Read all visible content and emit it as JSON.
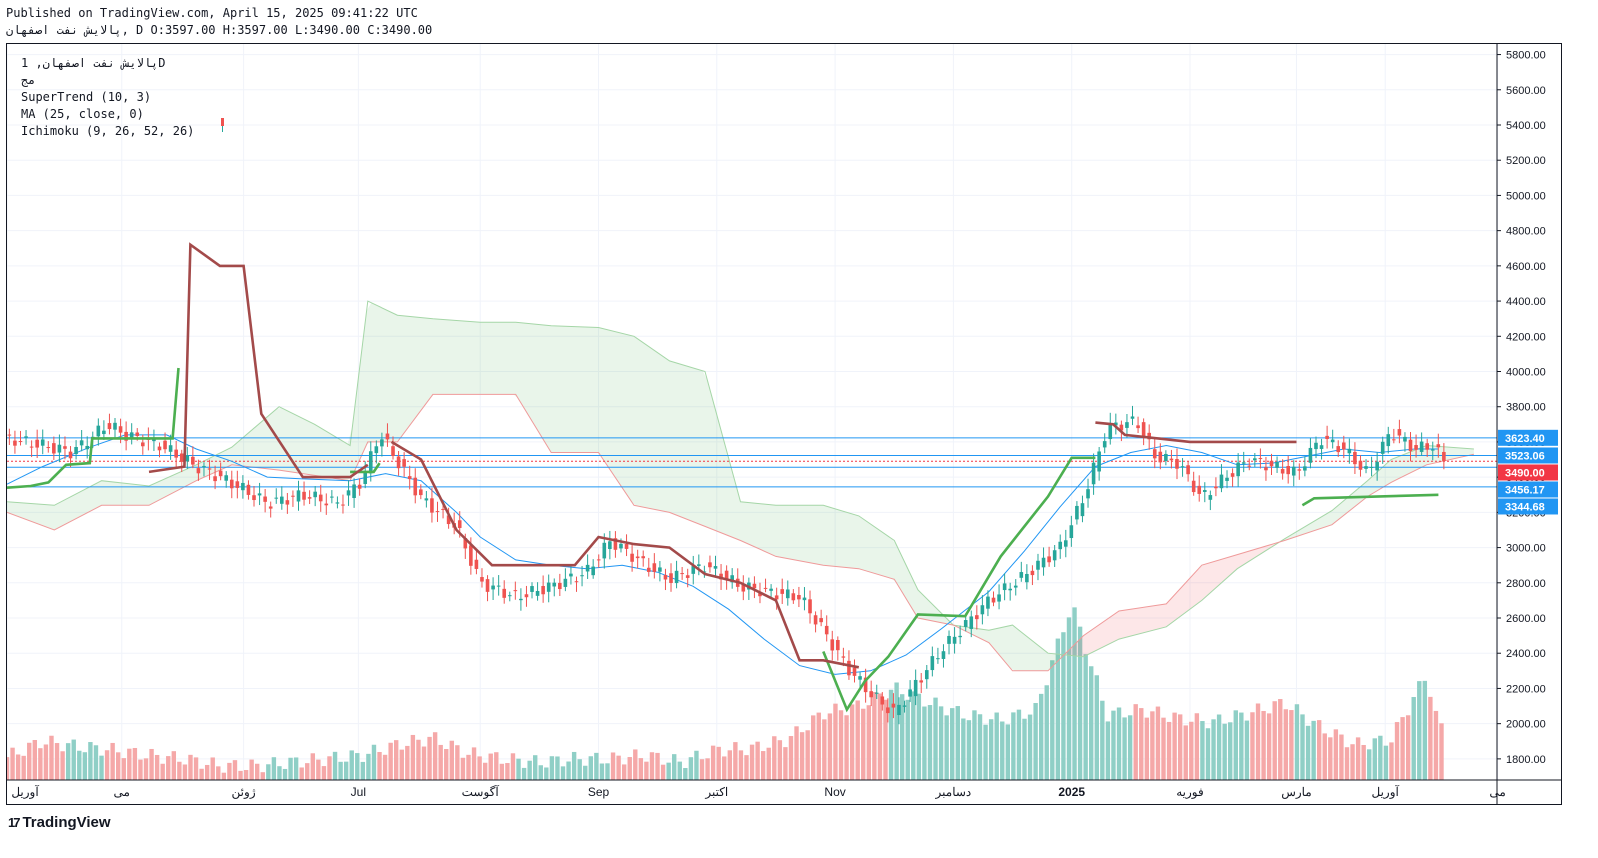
{
  "header": {
    "published": "Published on TradingView.com, April 15, 2025 09:41:22 UTC",
    "ohlc": "پالایش نفت اصفهان, D O:3597.00 H:3597.00 L:3490.00 C:3490.00"
  },
  "legend": {
    "symbol": "پالایش نفت اصفهان, 1D",
    "sub": "مج",
    "supertrend": "SuperTrend (10, 3)",
    "ma": "MA (25, close, 0)",
    "ichimoku": "Ichimoku (9, 26, 52, 26)"
  },
  "brand": {
    "logo": "17",
    "name": "TradingView"
  },
  "chart_data": {
    "type": "candlestick",
    "y_ticks": [
      "5800.00",
      "5600.00",
      "5400.00",
      "5200.00",
      "5000.00",
      "4800.00",
      "4600.00",
      "4400.00",
      "4200.00",
      "4000.00",
      "3800.00",
      "3600.00",
      "3400.00",
      "3200.00",
      "3000.00",
      "2800.00",
      "2600.00",
      "2400.00",
      "2200.00",
      "2000.00",
      "1800.00"
    ],
    "ylim": [
      1680,
      5860
    ],
    "x_labels": [
      {
        "label": "آوریل",
        "d": 0
      },
      {
        "label": "می",
        "d": 0.97
      },
      {
        "label": "ژوئن",
        "d": 2.0
      },
      {
        "label": "Jul",
        "d": 2.97
      },
      {
        "label": "آگوست",
        "d": 4.0
      },
      {
        "label": "Sep",
        "d": 5.0
      },
      {
        "label": "اکتبر",
        "d": 6.0
      },
      {
        "label": "Nov",
        "d": 7.0
      },
      {
        "label": "دسامبر",
        "d": 8.0
      },
      {
        "label": "2025",
        "d": 9.0
      },
      {
        "label": "فوریه",
        "d": 10.0
      },
      {
        "label": "مارس",
        "d": 10.9
      },
      {
        "label": "آوریل",
        "d": 11.65
      },
      {
        "label": "می",
        "d": 12.6
      }
    ],
    "price_labels": [
      {
        "value": "3623.40",
        "price": 3623.4,
        "color": "#2196f3"
      },
      {
        "value": "3523.06",
        "price": 3523.06,
        "color": "#2196f3"
      },
      {
        "value": "3490.00",
        "price": 3490,
        "color": "#f23645"
      },
      {
        "value": "3456.17",
        "price": 3456.17,
        "color": "#2196f3"
      },
      {
        "value": "3344.68",
        "price": 3344.68,
        "color": "#2196f3"
      }
    ],
    "close_path": [
      [
        0,
        3620
      ],
      [
        0.3,
        3580
      ],
      [
        0.55,
        3540
      ],
      [
        0.85,
        3700
      ],
      [
        1.0,
        3640
      ],
      [
        1.3,
        3580
      ],
      [
        1.6,
        3460
      ],
      [
        1.8,
        3400
      ],
      [
        2.0,
        3330
      ],
      [
        2.2,
        3250
      ],
      [
        2.5,
        3300
      ],
      [
        2.8,
        3250
      ],
      [
        3.0,
        3380
      ],
      [
        3.15,
        3650
      ],
      [
        3.3,
        3490
      ],
      [
        3.5,
        3280
      ],
      [
        3.8,
        3120
      ],
      [
        4.0,
        2800
      ],
      [
        4.3,
        2720
      ],
      [
        4.6,
        2780
      ],
      [
        4.9,
        2860
      ],
      [
        5.1,
        3040
      ],
      [
        5.4,
        2900
      ],
      [
        5.6,
        2820
      ],
      [
        5.9,
        2900
      ],
      [
        6.2,
        2780
      ],
      [
        6.5,
        2740
      ],
      [
        6.7,
        2720
      ],
      [
        6.9,
        2530
      ],
      [
        7.1,
        2320
      ],
      [
        7.3,
        2170
      ],
      [
        7.5,
        2060
      ],
      [
        7.7,
        2240
      ],
      [
        7.9,
        2420
      ],
      [
        8.1,
        2560
      ],
      [
        8.3,
        2700
      ],
      [
        8.6,
        2840
      ],
      [
        8.9,
        3000
      ],
      [
        9.1,
        3280
      ],
      [
        9.3,
        3680
      ],
      [
        9.55,
        3720
      ],
      [
        9.7,
        3520
      ],
      [
        9.9,
        3480
      ],
      [
        10.1,
        3280
      ],
      [
        10.3,
        3400
      ],
      [
        10.5,
        3500
      ],
      [
        10.7,
        3460
      ],
      [
        10.9,
        3420
      ],
      [
        11.1,
        3620
      ],
      [
        11.3,
        3560
      ],
      [
        11.5,
        3420
      ],
      [
        11.7,
        3660
      ],
      [
        11.9,
        3560
      ],
      [
        12.05,
        3580
      ],
      [
        12.15,
        3490
      ]
    ],
    "supertrend_up": [
      [
        [
          0,
          3340
        ],
        [
          0.2,
          3350
        ],
        [
          0.35,
          3370
        ],
        [
          0.5,
          3470
        ],
        [
          0.7,
          3480
        ],
        [
          0.72,
          3620
        ],
        [
          1.4,
          3620
        ],
        [
          1.45,
          4020
        ]
      ],
      [
        [
          2.9,
          3430
        ],
        [
          3.1,
          3430
        ],
        [
          3.15,
          3480
        ]
      ],
      [
        [
          6.9,
          2410
        ],
        [
          7.1,
          2080
        ],
        [
          7.25,
          2240
        ],
        [
          7.45,
          2380
        ],
        [
          7.7,
          2620
        ],
        [
          8.1,
          2610
        ],
        [
          8.4,
          2950
        ],
        [
          8.8,
          3290
        ],
        [
          9.0,
          3510
        ],
        [
          9.2,
          3510
        ]
      ],
      [
        [
          10.95,
          3240
        ],
        [
          11.05,
          3280
        ],
        [
          12.1,
          3300
        ]
      ]
    ],
    "supertrend_down": [
      [
        [
          1.2,
          3430
        ],
        [
          1.5,
          3460
        ],
        [
          1.55,
          4720
        ],
        [
          1.8,
          4600
        ],
        [
          2.0,
          4600
        ],
        [
          2.15,
          3760
        ],
        [
          2.5,
          3400
        ],
        [
          2.9,
          3400
        ],
        [
          3.05,
          3470
        ]
      ],
      [
        [
          3.25,
          3600
        ],
        [
          3.5,
          3500
        ],
        [
          3.8,
          3100
        ],
        [
          4.1,
          2900
        ],
        [
          4.3,
          2900
        ],
        [
          4.8,
          2900
        ],
        [
          5.0,
          3060
        ],
        [
          5.3,
          3020
        ],
        [
          5.6,
          3000
        ],
        [
          5.9,
          2850
        ],
        [
          6.2,
          2800
        ],
        [
          6.5,
          2700
        ],
        [
          6.7,
          2360
        ],
        [
          6.9,
          2360
        ],
        [
          7.2,
          2320
        ]
      ],
      [
        [
          9.2,
          3710
        ],
        [
          9.35,
          3700
        ],
        [
          9.45,
          3640
        ],
        [
          10.0,
          3600
        ],
        [
          10.9,
          3600
        ]
      ]
    ],
    "ma_path": [
      [
        0,
        3360
      ],
      [
        0.3,
        3460
      ],
      [
        0.7,
        3570
      ],
      [
        1.0,
        3640
      ],
      [
        1.35,
        3640
      ],
      [
        1.6,
        3560
      ],
      [
        1.9,
        3490
      ],
      [
        2.2,
        3400
      ],
      [
        2.5,
        3390
      ],
      [
        2.9,
        3380
      ],
      [
        3.2,
        3420
      ],
      [
        3.5,
        3380
      ],
      [
        3.8,
        3200
      ],
      [
        4.0,
        3060
      ],
      [
        4.3,
        2930
      ],
      [
        4.6,
        2900
      ],
      [
        4.9,
        2880
      ],
      [
        5.2,
        2900
      ],
      [
        5.5,
        2860
      ],
      [
        5.8,
        2780
      ],
      [
        6.1,
        2650
      ],
      [
        6.4,
        2480
      ],
      [
        6.7,
        2330
      ],
      [
        7.0,
        2280
      ],
      [
        7.3,
        2300
      ],
      [
        7.6,
        2390
      ],
      [
        7.9,
        2540
      ],
      [
        8.3,
        2750
      ],
      [
        8.6,
        2980
      ],
      [
        8.9,
        3230
      ],
      [
        9.2,
        3460
      ],
      [
        9.5,
        3540
      ],
      [
        9.8,
        3580
      ],
      [
        10.1,
        3540
      ],
      [
        10.4,
        3470
      ],
      [
        10.7,
        3480
      ],
      [
        11.0,
        3520
      ],
      [
        11.3,
        3560
      ],
      [
        11.6,
        3540
      ],
      [
        11.9,
        3560
      ],
      [
        12.1,
        3560
      ]
    ],
    "cloud": {
      "spanA": [
        [
          0,
          3260
        ],
        [
          0.4,
          3240
        ],
        [
          0.8,
          3380
        ],
        [
          1.2,
          3350
        ],
        [
          1.6,
          3470
        ],
        [
          1.9,
          3570
        ],
        [
          2.3,
          3800
        ],
        [
          2.6,
          3700
        ],
        [
          2.9,
          3580
        ],
        [
          3.05,
          4400
        ],
        [
          3.3,
          4320
        ],
        [
          3.6,
          4300
        ],
        [
          4.0,
          4280
        ],
        [
          4.3,
          4280
        ],
        [
          4.6,
          4260
        ],
        [
          5.0,
          4250
        ],
        [
          5.3,
          4200
        ],
        [
          5.6,
          4060
        ],
        [
          5.9,
          4000
        ],
        [
          6.2,
          3260
        ],
        [
          6.5,
          3240
        ],
        [
          6.9,
          3240
        ],
        [
          7.2,
          3180
        ],
        [
          7.5,
          3040
        ],
        [
          7.7,
          2760
        ],
        [
          8.0,
          2560
        ],
        [
          8.3,
          2530
        ],
        [
          8.5,
          2560
        ],
        [
          8.8,
          2400
        ],
        [
          9.1,
          2380
        ],
        [
          9.4,
          2480
        ],
        [
          9.8,
          2550
        ],
        [
          10.1,
          2700
        ],
        [
          10.4,
          2880
        ],
        [
          10.8,
          3050
        ],
        [
          11.2,
          3210
        ],
        [
          11.5,
          3380
        ],
        [
          11.7,
          3500
        ],
        [
          12.0,
          3580
        ],
        [
          12.4,
          3560
        ]
      ],
      "spanB": [
        [
          0,
          3200
        ],
        [
          0.4,
          3100
        ],
        [
          0.8,
          3240
        ],
        [
          1.2,
          3240
        ],
        [
          1.6,
          3380
        ],
        [
          1.9,
          3470
        ],
        [
          2.3,
          3440
        ],
        [
          2.6,
          3410
        ],
        [
          2.9,
          3380
        ],
        [
          3.05,
          3600
        ],
        [
          3.3,
          3600
        ],
        [
          3.6,
          3870
        ],
        [
          4.0,
          3870
        ],
        [
          4.3,
          3870
        ],
        [
          4.6,
          3540
        ],
        [
          5.0,
          3540
        ],
        [
          5.3,
          3240
        ],
        [
          5.6,
          3200
        ],
        [
          5.9,
          3120
        ],
        [
          6.2,
          3040
        ],
        [
          6.5,
          2950
        ],
        [
          6.9,
          2900
        ],
        [
          7.2,
          2880
        ],
        [
          7.5,
          2820
        ],
        [
          7.7,
          2600
        ],
        [
          8.0,
          2560
        ],
        [
          8.3,
          2460
        ],
        [
          8.5,
          2300
        ],
        [
          8.8,
          2300
        ],
        [
          9.1,
          2500
        ],
        [
          9.4,
          2640
        ],
        [
          9.8,
          2680
        ],
        [
          10.1,
          2900
        ],
        [
          10.4,
          2960
        ],
        [
          10.8,
          3040
        ],
        [
          11.2,
          3130
        ],
        [
          11.5,
          3290
        ],
        [
          11.7,
          3370
        ],
        [
          12.0,
          3470
        ],
        [
          12.4,
          3530
        ]
      ]
    },
    "volume": [
      [
        0,
        1810
      ],
      [
        0.3,
        1900
      ],
      [
        0.6,
        1870
      ],
      [
        0.9,
        1850
      ],
      [
        1.2,
        1820
      ],
      [
        1.5,
        1800
      ],
      [
        1.8,
        1760
      ],
      [
        2.1,
        1760
      ],
      [
        2.4,
        1780
      ],
      [
        2.7,
        1800
      ],
      [
        3.0,
        1820
      ],
      [
        3.3,
        1880
      ],
      [
        3.6,
        1920
      ],
      [
        3.9,
        1830
      ],
      [
        4.2,
        1800
      ],
      [
        4.5,
        1780
      ],
      [
        4.8,
        1800
      ],
      [
        5.1,
        1800
      ],
      [
        5.4,
        1820
      ],
      [
        5.7,
        1780
      ],
      [
        6.0,
        1850
      ],
      [
        6.3,
        1860
      ],
      [
        6.6,
        1910
      ],
      [
        6.9,
        2060
      ],
      [
        7.2,
        2100
      ],
      [
        7.5,
        2200
      ],
      [
        7.8,
        2120
      ],
      [
        8.1,
        2050
      ],
      [
        8.4,
        2020
      ],
      [
        8.7,
        2080
      ],
      [
        9.0,
        2680
      ],
      [
        9.3,
        2050
      ],
      [
        9.6,
        2080
      ],
      [
        9.9,
        2030
      ],
      [
        10.2,
        2010
      ],
      [
        10.5,
        2060
      ],
      [
        10.8,
        2120
      ],
      [
        11.1,
        1980
      ],
      [
        11.4,
        1880
      ],
      [
        11.7,
        1910
      ],
      [
        12.0,
        2280
      ],
      [
        12.1,
        1980
      ]
    ]
  }
}
